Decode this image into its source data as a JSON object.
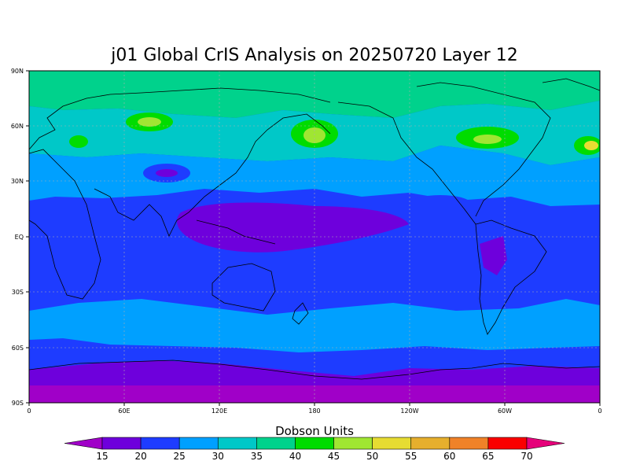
{
  "title": "j01 Global CrIS Analysis on 20250720 Layer 12",
  "map": {
    "y_ticks": [
      "90N",
      "60N",
      "30N",
      "EQ",
      "30S",
      "60S",
      "90S"
    ],
    "x_ticks": [
      "0",
      "60E",
      "120E",
      "180",
      "120W",
      "60W",
      "0"
    ]
  },
  "colorbar": {
    "units_label": "Dobson Units",
    "levels": [
      "15",
      "20",
      "25",
      "30",
      "35",
      "40",
      "45",
      "50",
      "55",
      "60",
      "65",
      "70"
    ],
    "colors": [
      "#a000c8",
      "#6e00dc",
      "#1e3cff",
      "#00a0ff",
      "#00c8c8",
      "#00d28c",
      "#00dc00",
      "#a0e632",
      "#e6dc32",
      "#e6af2d",
      "#f08228",
      "#fa0000",
      "#e6007a"
    ]
  },
  "chart_data": {
    "type": "heatmap",
    "title": "j01 Global CrIS Analysis on 20250720 Layer 12",
    "units": "Dobson Units",
    "xlim": [
      0,
      360
    ],
    "ylim": [
      -90,
      90
    ],
    "lat_bands": [
      {
        "lat": [
          -90,
          -75
        ],
        "value": 15
      },
      {
        "lat": [
          -75,
          -55
        ],
        "value": 20
      },
      {
        "lat": [
          -55,
          -40
        ],
        "value": 25
      },
      {
        "lat": [
          -40,
          -25
        ],
        "value": 25
      },
      {
        "lat": [
          -25,
          20
        ],
        "value": 20
      },
      {
        "lat": [
          20,
          45
        ],
        "value": 27
      },
      {
        "lat": [
          45,
          75
        ],
        "value": 33
      },
      {
        "lat": [
          75,
          90
        ],
        "value": 37
      }
    ]
  }
}
